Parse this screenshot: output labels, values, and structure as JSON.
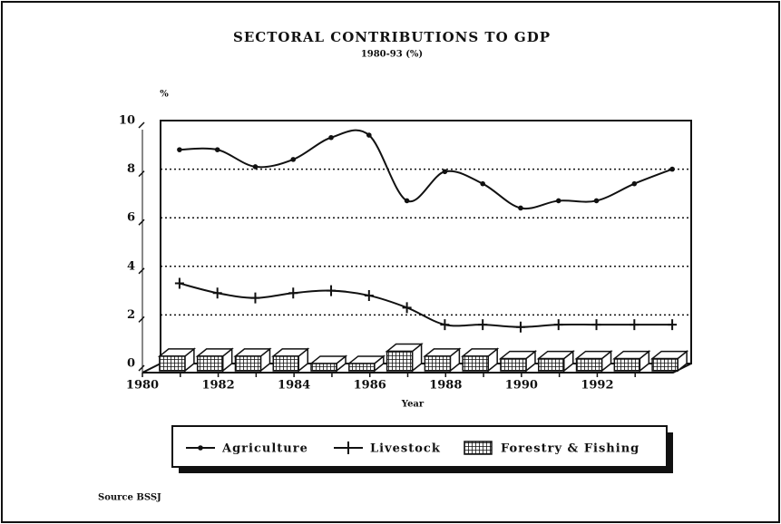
{
  "chart_data": {
    "type": "line",
    "title": "SECTORAL CONTRIBUTIONS TO GDP",
    "subtitle": "1980-93 (%)",
    "y_label": "%",
    "x_label": "Year",
    "source": "Source BSSJ",
    "categories": [
      "1980",
      null,
      "1982",
      null,
      "1984",
      null,
      "1986",
      null,
      "1988",
      null,
      "1990",
      null,
      "1992",
      null
    ],
    "series": [
      {
        "name": "Agriculture",
        "type": "line",
        "marker": "dot",
        "color": "#111",
        "values": [
          8.8,
          8.8,
          8.1,
          8.4,
          9.3,
          9.4,
          6.7,
          7.9,
          7.4,
          6.4,
          6.7,
          6.7,
          7.4,
          8.0
        ]
      },
      {
        "name": "Livestock",
        "type": "line",
        "marker": "plus",
        "color": "#111",
        "values": [
          3.3,
          2.9,
          2.7,
          2.9,
          3.0,
          2.8,
          2.3,
          1.6,
          1.6,
          1.5,
          1.6,
          1.6,
          1.6,
          1.6
        ]
      },
      {
        "name": "Forestry & Fishing",
        "type": "bar",
        "color": "#111",
        "values": [
          0.6,
          0.6,
          0.6,
          0.6,
          0.3,
          0.3,
          0.8,
          0.6,
          0.6,
          0.5,
          0.5,
          0.5,
          0.5,
          0.5
        ]
      }
    ],
    "ylim": [
      0,
      10
    ],
    "yticks": [
      0,
      2,
      4,
      6,
      8,
      10
    ],
    "grid": true
  }
}
